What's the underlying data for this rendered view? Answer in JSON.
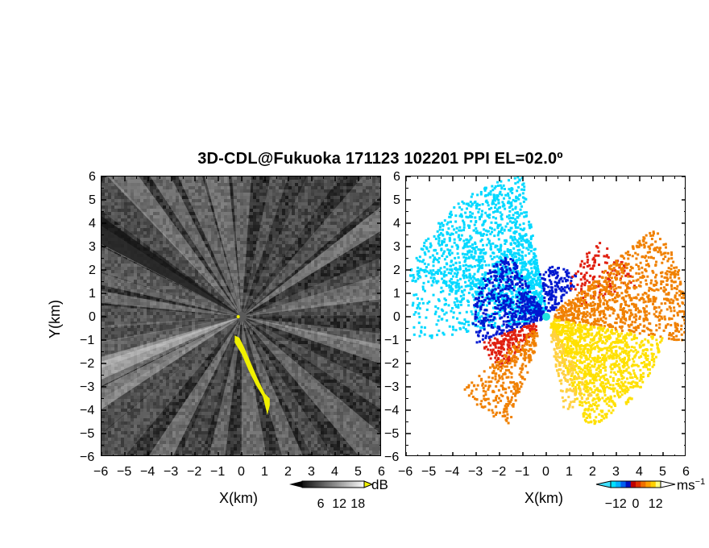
{
  "title": "3D-CDL@Fukuoka 171123 102201 PPI EL=02.0º",
  "chart_data": [
    {
      "type": "heatmap",
      "panel": "left",
      "quantity": "signal intensity",
      "xlabel": "X(km)",
      "ylabel": "Y(km)",
      "xlim": [
        -6,
        6
      ],
      "ylim": [
        -6,
        6
      ],
      "xticks": [
        "−6",
        "−5",
        "−4",
        "−3",
        "−2",
        "−1",
        "0",
        "1",
        "2",
        "3",
        "4",
        "5",
        "6"
      ],
      "yticks": [
        "6",
        "5",
        "4",
        "3",
        "2",
        "1",
        "0",
        "−1",
        "−2",
        "−3",
        "−4",
        "−5",
        "−6"
      ],
      "colorbar": {
        "unit": "dB",
        "ticks": [
          "6",
          "12",
          "18"
        ],
        "range": [
          0,
          20
        ],
        "colormap": "grayscale"
      },
      "highlight_color": "#f0f000"
    },
    {
      "type": "heatmap",
      "panel": "right",
      "quantity": "Doppler velocity",
      "xlabel": "X(km)",
      "xlim": [
        -6,
        6
      ],
      "ylim": [
        -6,
        6
      ],
      "xticks": [
        "−6",
        "−5",
        "−4",
        "−3",
        "−2",
        "−1",
        "0",
        "1",
        "2",
        "3",
        "4",
        "5",
        "6"
      ],
      "yticks": [
        "6",
        "5",
        "4",
        "3",
        "2",
        "1",
        "0",
        "−1",
        "−2",
        "−3",
        "−4",
        "−5",
        "−6"
      ],
      "colorbar": {
        "unit": "ms",
        "unit_exp": "−1",
        "ticks": [
          "−12",
          "0",
          "12"
        ],
        "range": [
          -15,
          15
        ],
        "colormap": "cyan-blue-red-orange-yellow"
      }
    }
  ],
  "colors": {
    "cyan": "#00d8ff",
    "blue": "#0018d0",
    "red": "#e02010",
    "orange": "#f08000",
    "yellow": "#ffe000",
    "gray_bg": "#3a3a3a"
  }
}
